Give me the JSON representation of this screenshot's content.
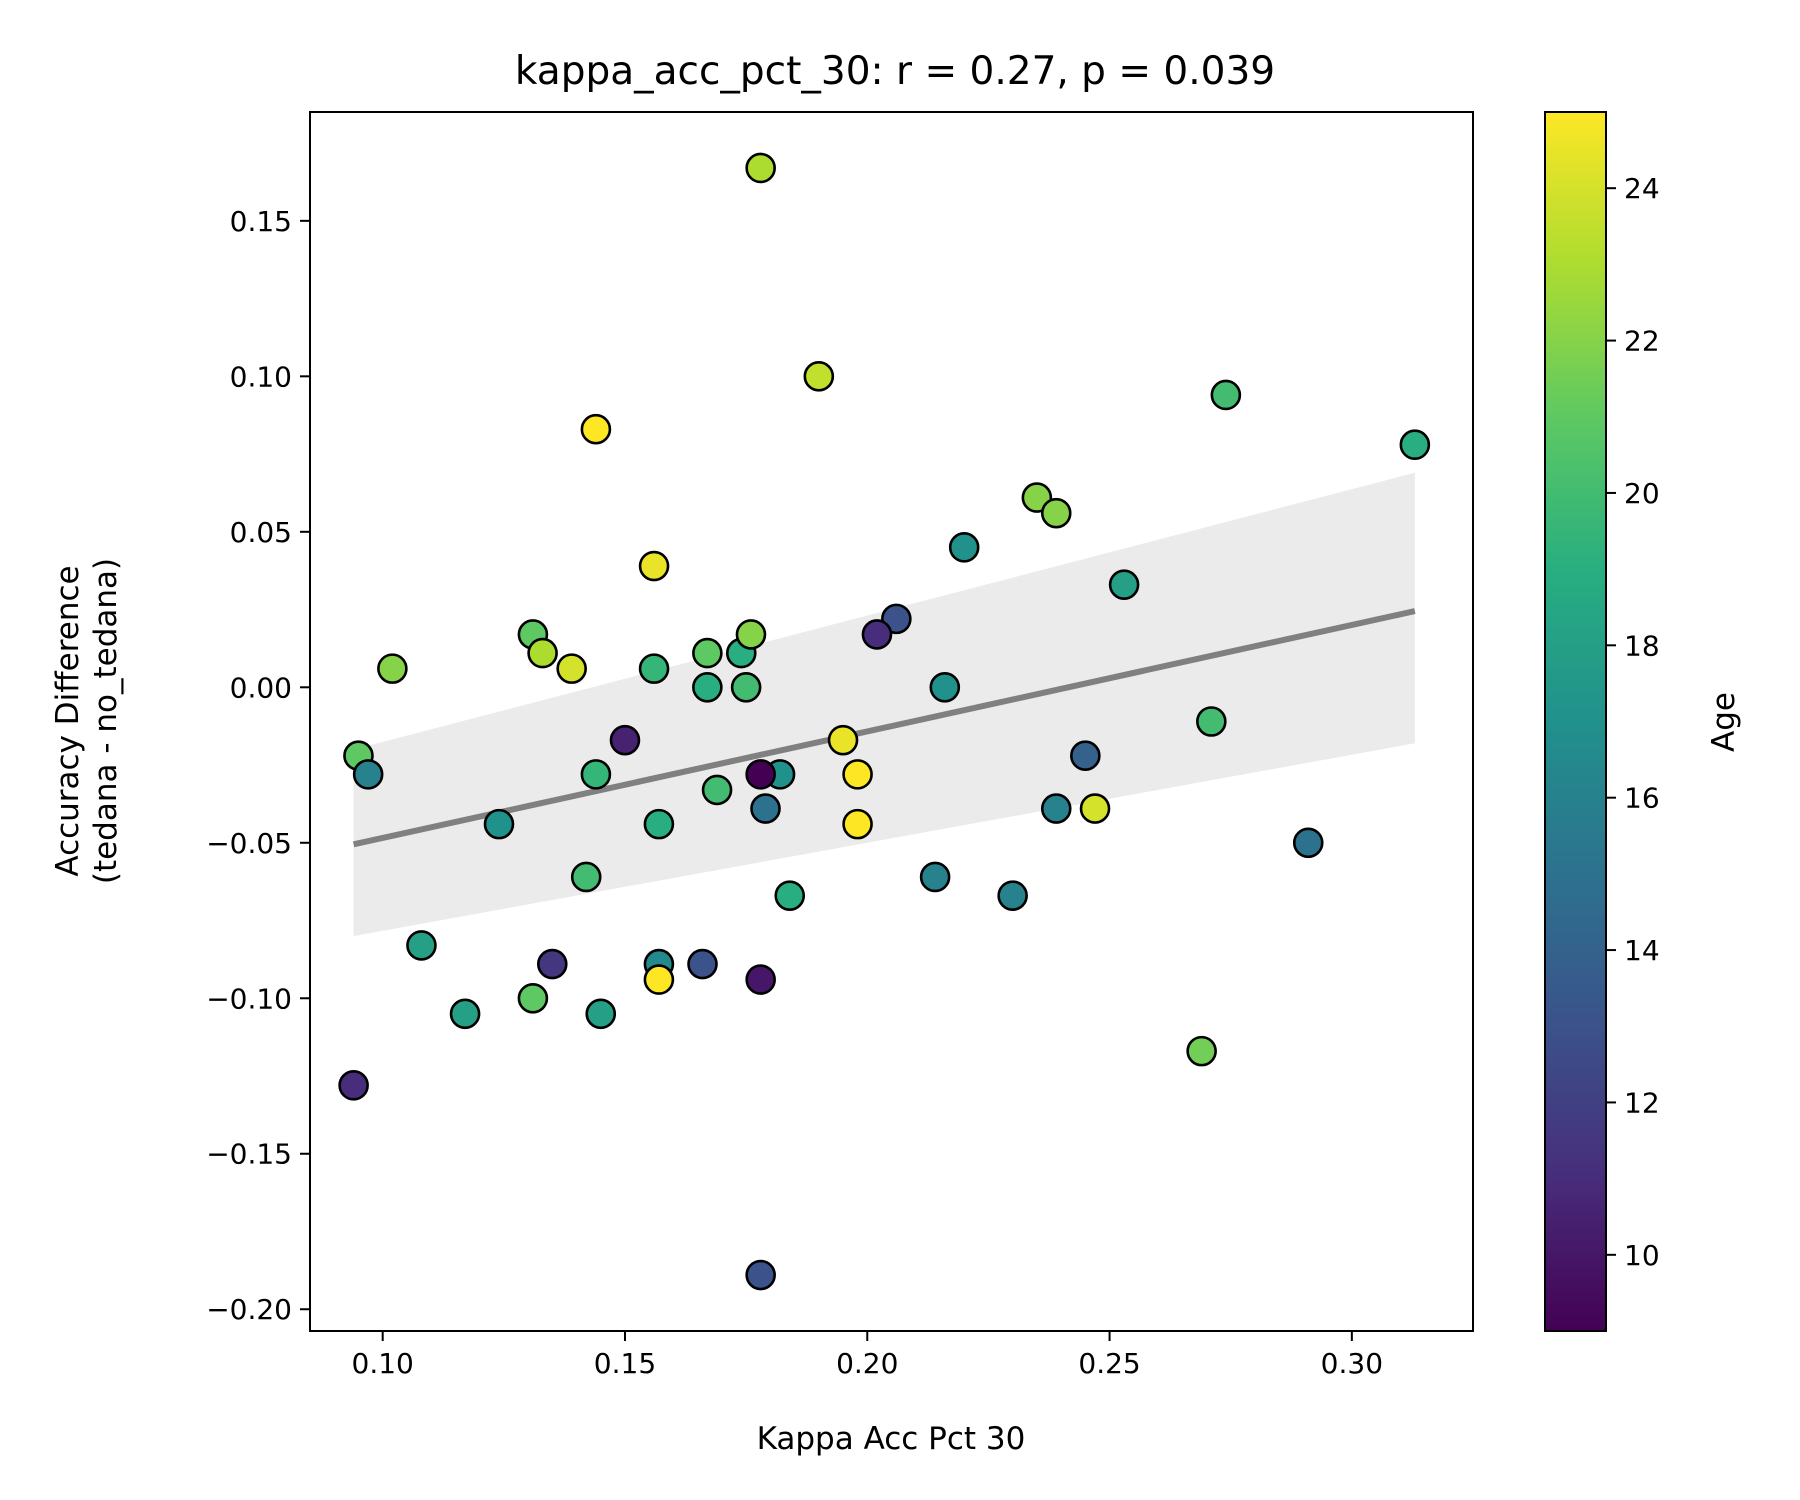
{
  "chart_data": {
    "type": "scatter",
    "title": "kappa_acc_pct_30: r = 0.27, p = 0.039",
    "xlabel": "Kappa Acc Pct 30",
    "ylabel": [
      "Accuracy Difference",
      "(tedana - no_tedana)"
    ],
    "xlim": [
      0.085,
      0.325
    ],
    "ylim": [
      -0.207,
      0.185
    ],
    "xticks": [
      0.1,
      0.15,
      0.2,
      0.25,
      0.3
    ],
    "xtick_labels": [
      "0.10",
      "0.15",
      "0.20",
      "0.25",
      "0.30"
    ],
    "yticks": [
      0.15,
      0.1,
      0.05,
      0.0,
      -0.05,
      -0.1,
      -0.15,
      -0.2
    ],
    "ytick_labels": [
      "0.15",
      "0.10",
      "0.05",
      "0.00",
      "−0.05",
      "−0.10",
      "−0.15",
      "−0.20"
    ],
    "grid": false,
    "colorbar": {
      "label": "Age",
      "colormap": "viridis",
      "range": [
        9,
        25
      ],
      "ticks": [
        24,
        22,
        20,
        18,
        16,
        14,
        12,
        10
      ],
      "tick_labels": [
        "24",
        "22",
        "20",
        "18",
        "16",
        "14",
        "12",
        "10"
      ]
    },
    "regression": {
      "x": [
        0.094,
        0.313
      ],
      "y": [
        -0.0505,
        0.0245
      ],
      "color": "#808080",
      "ci_upper": [
        -0.02,
        0.069
      ],
      "ci_lower": [
        -0.08,
        -0.018
      ],
      "ci_color": "#ebebeb"
    },
    "points": [
      {
        "x": 0.178,
        "y": 0.167,
        "age": 23
      },
      {
        "x": 0.19,
        "y": 0.1,
        "age": 23.5
      },
      {
        "x": 0.144,
        "y": 0.083,
        "age": 25
      },
      {
        "x": 0.274,
        "y": 0.094,
        "age": 20
      },
      {
        "x": 0.313,
        "y": 0.078,
        "age": 19
      },
      {
        "x": 0.235,
        "y": 0.061,
        "age": 22
      },
      {
        "x": 0.239,
        "y": 0.056,
        "age": 22
      },
      {
        "x": 0.156,
        "y": 0.039,
        "age": 24.5
      },
      {
        "x": 0.22,
        "y": 0.045,
        "age": 17
      },
      {
        "x": 0.253,
        "y": 0.033,
        "age": 18
      },
      {
        "x": 0.206,
        "y": 0.022,
        "age": 13
      },
      {
        "x": 0.202,
        "y": 0.017,
        "age": 11
      },
      {
        "x": 0.131,
        "y": 0.017,
        "age": 21
      },
      {
        "x": 0.133,
        "y": 0.011,
        "age": 23
      },
      {
        "x": 0.139,
        "y": 0.006,
        "age": 24
      },
      {
        "x": 0.102,
        "y": 0.006,
        "age": 22
      },
      {
        "x": 0.156,
        "y": 0.006,
        "age": 19.5
      },
      {
        "x": 0.167,
        "y": 0.011,
        "age": 21
      },
      {
        "x": 0.174,
        "y": 0.011,
        "age": 19
      },
      {
        "x": 0.176,
        "y": 0.017,
        "age": 22
      },
      {
        "x": 0.167,
        "y": 0.0,
        "age": 19
      },
      {
        "x": 0.175,
        "y": 0.0,
        "age": 20
      },
      {
        "x": 0.216,
        "y": 0.0,
        "age": 17
      },
      {
        "x": 0.271,
        "y": -0.011,
        "age": 20
      },
      {
        "x": 0.15,
        "y": -0.017,
        "age": 10.5
      },
      {
        "x": 0.195,
        "y": -0.017,
        "age": 24.5
      },
      {
        "x": 0.095,
        "y": -0.022,
        "age": 21
      },
      {
        "x": 0.097,
        "y": -0.028,
        "age": 16
      },
      {
        "x": 0.144,
        "y": -0.028,
        "age": 19.5
      },
      {
        "x": 0.182,
        "y": -0.028,
        "age": 17
      },
      {
        "x": 0.178,
        "y": -0.028,
        "age": 9
      },
      {
        "x": 0.198,
        "y": -0.028,
        "age": 25
      },
      {
        "x": 0.245,
        "y": -0.022,
        "age": 14
      },
      {
        "x": 0.169,
        "y": -0.033,
        "age": 20
      },
      {
        "x": 0.179,
        "y": -0.039,
        "age": 15
      },
      {
        "x": 0.239,
        "y": -0.039,
        "age": 16
      },
      {
        "x": 0.247,
        "y": -0.039,
        "age": 24
      },
      {
        "x": 0.124,
        "y": -0.044,
        "age": 17
      },
      {
        "x": 0.157,
        "y": -0.044,
        "age": 19
      },
      {
        "x": 0.198,
        "y": -0.044,
        "age": 25
      },
      {
        "x": 0.291,
        "y": -0.05,
        "age": 15
      },
      {
        "x": 0.142,
        "y": -0.061,
        "age": 20
      },
      {
        "x": 0.214,
        "y": -0.061,
        "age": 16
      },
      {
        "x": 0.184,
        "y": -0.067,
        "age": 19
      },
      {
        "x": 0.23,
        "y": -0.067,
        "age": 16
      },
      {
        "x": 0.108,
        "y": -0.083,
        "age": 18
      },
      {
        "x": 0.135,
        "y": -0.089,
        "age": 11.5
      },
      {
        "x": 0.157,
        "y": -0.089,
        "age": 16.5
      },
      {
        "x": 0.166,
        "y": -0.089,
        "age": 13
      },
      {
        "x": 0.157,
        "y": -0.094,
        "age": 25
      },
      {
        "x": 0.178,
        "y": -0.094,
        "age": 10
      },
      {
        "x": 0.131,
        "y": -0.1,
        "age": 21
      },
      {
        "x": 0.117,
        "y": -0.105,
        "age": 18
      },
      {
        "x": 0.145,
        "y": -0.105,
        "age": 18
      },
      {
        "x": 0.269,
        "y": -0.117,
        "age": 21.5
      },
      {
        "x": 0.094,
        "y": -0.128,
        "age": 11
      },
      {
        "x": 0.178,
        "y": -0.189,
        "age": 13
      }
    ]
  }
}
